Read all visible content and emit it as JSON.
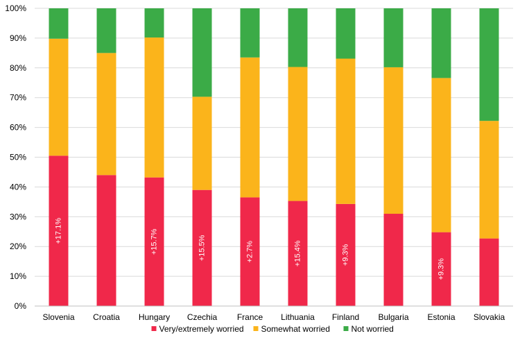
{
  "chart_data": {
    "type": "bar",
    "stacked": true,
    "percent_stacked": true,
    "categories": [
      "Slovenia",
      "Croatia",
      "Hungary",
      "Czechia",
      "France",
      "Lithuania",
      "Finland",
      "Bulgaria",
      "Estonia",
      "Slovakia"
    ],
    "series": [
      {
        "name": "Very/extremely worried",
        "color": "#f0284a",
        "values": [
          50.5,
          44.0,
          43.2,
          39.0,
          36.5,
          35.3,
          34.3,
          31.0,
          24.8,
          22.7
        ]
      },
      {
        "name": "Somewhat worried",
        "color": "#fbb41b",
        "values": [
          39.3,
          41.0,
          47.0,
          31.3,
          47.0,
          45.0,
          48.8,
          49.2,
          51.8,
          39.5
        ]
      },
      {
        "name": "Not worried",
        "color": "#3bab47",
        "values": [
          10.2,
          15.0,
          9.8,
          29.7,
          16.5,
          19.7,
          16.9,
          19.8,
          23.4,
          37.8
        ]
      }
    ],
    "annotations": [
      "+17.1%",
      "",
      "+15.7%",
      "+15.5%",
      "+2.7%",
      "+15.4%",
      "+9.3%",
      "",
      "+9.3%",
      ""
    ],
    "ylim": [
      0,
      100
    ],
    "yticks": [
      "0%",
      "10%",
      "20%",
      "30%",
      "40%",
      "50%",
      "60%",
      "70%",
      "80%",
      "90%",
      "100%"
    ],
    "title": "",
    "xlabel": "",
    "ylabel": "",
    "grid": true,
    "legend_position": "bottom"
  }
}
